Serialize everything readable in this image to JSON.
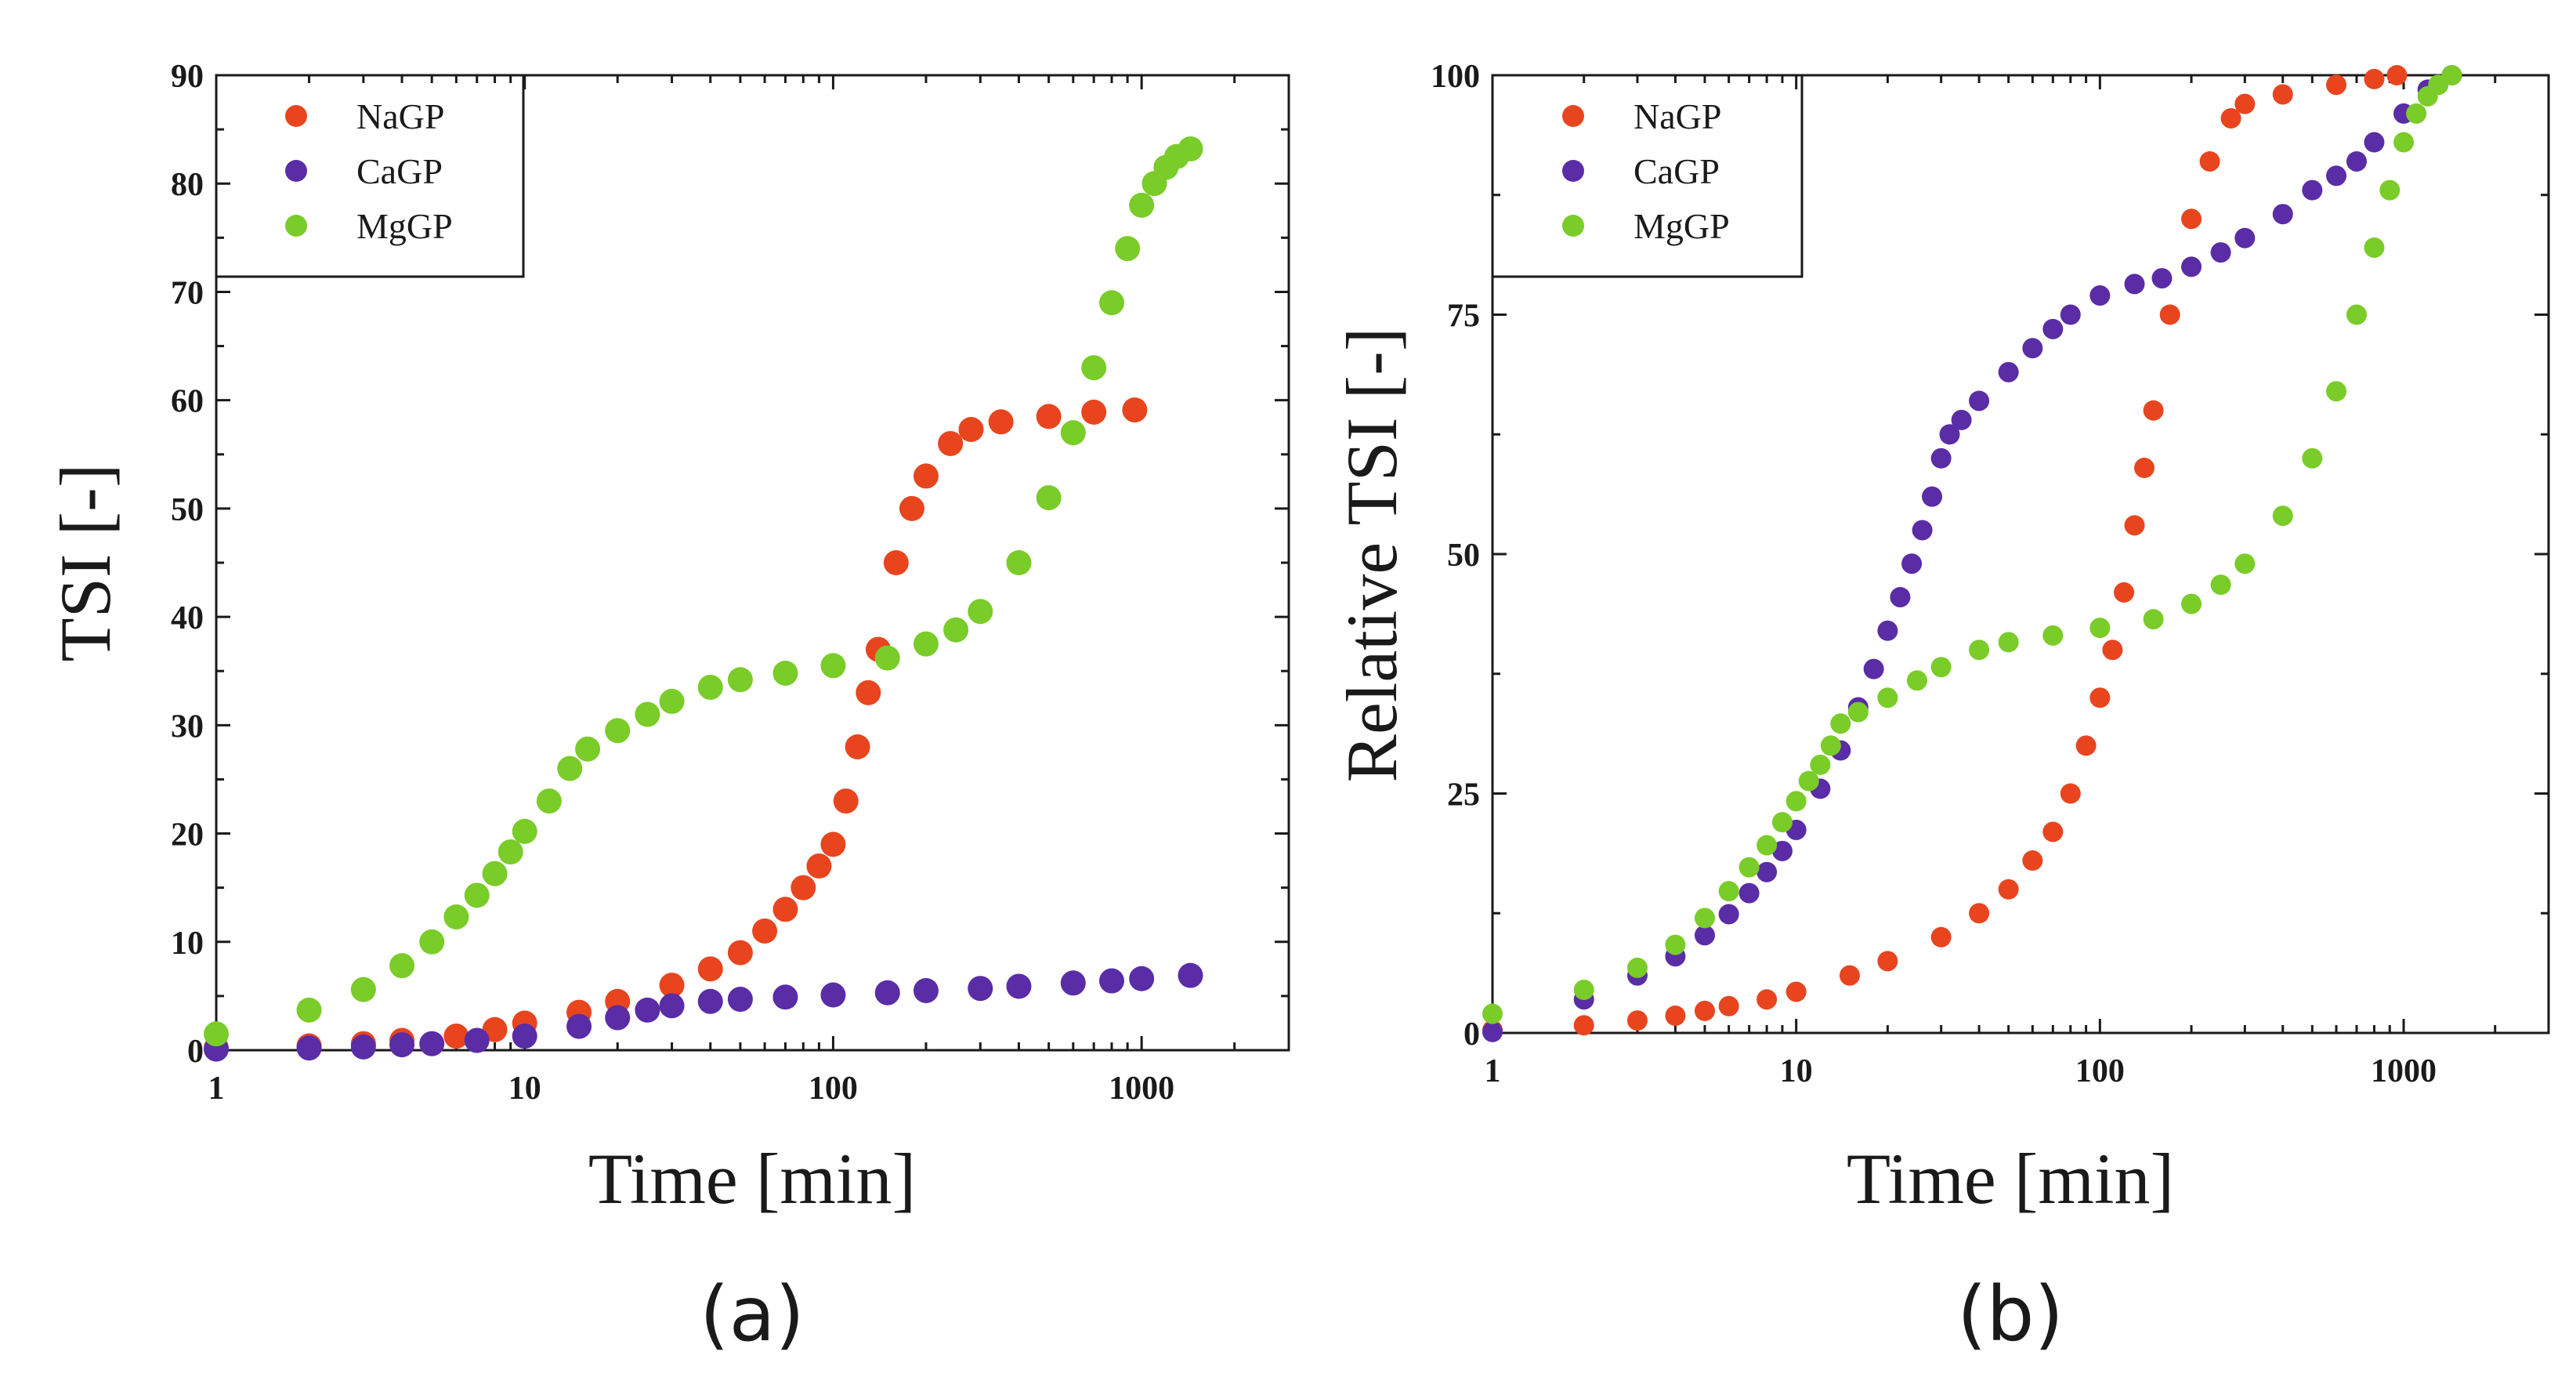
{
  "chart_data": [
    {
      "type": "scatter",
      "panel_label": "(a)",
      "xlabel": "Time [min]",
      "ylabel": "TSI [-]",
      "x_scale": "log",
      "xlim": [
        1,
        3000
      ],
      "ylim": [
        0,
        90
      ],
      "x_ticks": [
        1,
        10,
        100,
        1000
      ],
      "x_tick_labels": [
        "1",
        "10",
        "100",
        "1000"
      ],
      "y_ticks": [
        0,
        10,
        20,
        30,
        40,
        50,
        60,
        70,
        80,
        90
      ],
      "y_tick_labels": [
        "0",
        "10",
        "20",
        "30",
        "40",
        "50",
        "60",
        "70",
        "80",
        "90"
      ],
      "legend_position": "top-left",
      "series": [
        {
          "name": "NaGP",
          "color": "#e8451f",
          "points": [
            [
              1,
              0.2
            ],
            [
              2,
              0.4
            ],
            [
              3,
              0.6
            ],
            [
              4,
              0.9
            ],
            [
              6,
              1.3
            ],
            [
              8,
              1.9
            ],
            [
              10,
              2.5
            ],
            [
              15,
              3.5
            ],
            [
              20,
              4.5
            ],
            [
              30,
              6.0
            ],
            [
              40,
              7.5
            ],
            [
              50,
              9.0
            ],
            [
              60,
              11
            ],
            [
              70,
              13
            ],
            [
              80,
              15
            ],
            [
              90,
              17
            ],
            [
              100,
              19
            ],
            [
              110,
              23
            ],
            [
              120,
              28
            ],
            [
              130,
              33
            ],
            [
              140,
              37
            ],
            [
              160,
              45
            ],
            [
              180,
              50
            ],
            [
              200,
              53
            ],
            [
              240,
              56
            ],
            [
              280,
              57.3
            ],
            [
              350,
              58
            ],
            [
              500,
              58.5
            ],
            [
              700,
              58.9
            ],
            [
              950,
              59.1
            ]
          ]
        },
        {
          "name": "CaGP",
          "color": "#5a2ca6",
          "points": [
            [
              1,
              0.1
            ],
            [
              2,
              0.2
            ],
            [
              3,
              0.3
            ],
            [
              4,
              0.5
            ],
            [
              5,
              0.6
            ],
            [
              7,
              0.9
            ],
            [
              10,
              1.3
            ],
            [
              15,
              2.2
            ],
            [
              20,
              3.0
            ],
            [
              25,
              3.7
            ],
            [
              30,
              4.1
            ],
            [
              40,
              4.5
            ],
            [
              50,
              4.7
            ],
            [
              70,
              4.9
            ],
            [
              100,
              5.1
            ],
            [
              150,
              5.3
            ],
            [
              200,
              5.5
            ],
            [
              300,
              5.7
            ],
            [
              400,
              5.9
            ],
            [
              600,
              6.2
            ],
            [
              800,
              6.4
            ],
            [
              1000,
              6.6
            ],
            [
              1440,
              6.9
            ]
          ]
        },
        {
          "name": "MgGP",
          "color": "#7acc29",
          "points": [
            [
              1,
              1.5
            ],
            [
              2,
              3.7
            ],
            [
              3,
              5.6
            ],
            [
              4,
              7.8
            ],
            [
              5,
              10
            ],
            [
              6,
              12.3
            ],
            [
              7,
              14.3
            ],
            [
              8,
              16.3
            ],
            [
              9,
              18.3
            ],
            [
              10,
              20.2
            ],
            [
              12,
              23
            ],
            [
              14,
              26
            ],
            [
              16,
              27.8
            ],
            [
              20,
              29.5
            ],
            [
              25,
              31
            ],
            [
              30,
              32.2
            ],
            [
              40,
              33.5
            ],
            [
              50,
              34.2
            ],
            [
              70,
              34.8
            ],
            [
              100,
              35.5
            ],
            [
              150,
              36.2
            ],
            [
              200,
              37.5
            ],
            [
              250,
              38.8
            ],
            [
              300,
              40.5
            ],
            [
              400,
              45
            ],
            [
              500,
              51
            ],
            [
              600,
              57
            ],
            [
              700,
              63
            ],
            [
              800,
              69
            ],
            [
              900,
              74
            ],
            [
              1000,
              78
            ],
            [
              1100,
              80
            ],
            [
              1200,
              81.5
            ],
            [
              1300,
              82.5
            ],
            [
              1440,
              83.2
            ]
          ]
        }
      ]
    },
    {
      "type": "scatter",
      "panel_label": "(b)",
      "xlabel": "Time [min]",
      "ylabel": "Relative TSI [-]",
      "x_scale": "log",
      "xlim": [
        1,
        3000
      ],
      "ylim": [
        0,
        100
      ],
      "x_ticks": [
        1,
        10,
        100,
        1000
      ],
      "x_tick_labels": [
        "1",
        "10",
        "100",
        "1000"
      ],
      "y_ticks": [
        0,
        25,
        50,
        75,
        100
      ],
      "y_tick_labels": [
        "0",
        "25",
        "50",
        "75",
        "100"
      ],
      "legend_position": "top-left",
      "series": [
        {
          "name": "NaGP",
          "color": "#e8451f",
          "points": [
            [
              1,
              0.3
            ],
            [
              2,
              0.8
            ],
            [
              3,
              1.3
            ],
            [
              4,
              1.8
            ],
            [
              5,
              2.3
            ],
            [
              6,
              2.8
            ],
            [
              8,
              3.5
            ],
            [
              10,
              4.3
            ],
            [
              15,
              6.0
            ],
            [
              20,
              7.5
            ],
            [
              30,
              10
            ],
            [
              40,
              12.5
            ],
            [
              50,
              15
            ],
            [
              60,
              18
            ],
            [
              70,
              21
            ],
            [
              80,
              25
            ],
            [
              90,
              30
            ],
            [
              100,
              35
            ],
            [
              110,
              40
            ],
            [
              120,
              46
            ],
            [
              130,
              53
            ],
            [
              140,
              59
            ],
            [
              150,
              65
            ],
            [
              170,
              75
            ],
            [
              200,
              85
            ],
            [
              230,
              91
            ],
            [
              270,
              95.5
            ],
            [
              300,
              97
            ],
            [
              400,
              98
            ],
            [
              600,
              99
            ],
            [
              800,
              99.6
            ],
            [
              950,
              100
            ]
          ]
        },
        {
          "name": "CaGP",
          "color": "#5a2ca6",
          "points": [
            [
              1,
              0.1
            ],
            [
              2,
              3.5
            ],
            [
              3,
              6.0
            ],
            [
              4,
              8.0
            ],
            [
              5,
              10.2
            ],
            [
              6,
              12.4
            ],
            [
              7,
              14.6
            ],
            [
              8,
              16.8
            ],
            [
              9,
              19
            ],
            [
              10,
              21.2
            ],
            [
              12,
              25.5
            ],
            [
              14,
              29.5
            ],
            [
              16,
              34
            ],
            [
              18,
              38
            ],
            [
              20,
              42
            ],
            [
              22,
              45.5
            ],
            [
              24,
              49
            ],
            [
              26,
              52.5
            ],
            [
              28,
              56
            ],
            [
              30,
              60
            ],
            [
              32,
              62.5
            ],
            [
              35,
              64
            ],
            [
              40,
              66
            ],
            [
              50,
              69
            ],
            [
              60,
              71.5
            ],
            [
              70,
              73.5
            ],
            [
              80,
              75
            ],
            [
              100,
              77
            ],
            [
              130,
              78.2
            ],
            [
              160,
              78.8
            ],
            [
              200,
              80
            ],
            [
              250,
              81.5
            ],
            [
              300,
              83
            ],
            [
              400,
              85.5
            ],
            [
              500,
              88
            ],
            [
              600,
              89.5
            ],
            [
              700,
              91
            ],
            [
              800,
              93
            ],
            [
              1000,
              96
            ],
            [
              1200,
              98.5
            ],
            [
              1440,
              100
            ]
          ]
        },
        {
          "name": "MgGP",
          "color": "#7acc29",
          "points": [
            [
              1,
              2
            ],
            [
              2,
              4.5
            ],
            [
              3,
              6.8
            ],
            [
              4,
              9.2
            ],
            [
              5,
              12
            ],
            [
              6,
              14.8
            ],
            [
              7,
              17.3
            ],
            [
              8,
              19.6
            ],
            [
              9,
              22
            ],
            [
              10,
              24.2
            ],
            [
              11,
              26.3
            ],
            [
              12,
              28
            ],
            [
              13,
              30
            ],
            [
              14,
              32.3
            ],
            [
              16,
              33.5
            ],
            [
              20,
              35
            ],
            [
              25,
              36.8
            ],
            [
              30,
              38.2
            ],
            [
              40,
              40
            ],
            [
              50,
              40.8
            ],
            [
              70,
              41.5
            ],
            [
              100,
              42.3
            ],
            [
              150,
              43.2
            ],
            [
              200,
              44.8
            ],
            [
              250,
              46.8
            ],
            [
              300,
              49
            ],
            [
              400,
              54
            ],
            [
              500,
              60
            ],
            [
              600,
              67
            ],
            [
              700,
              75
            ],
            [
              800,
              82
            ],
            [
              900,
              88
            ],
            [
              1000,
              93
            ],
            [
              1100,
              96
            ],
            [
              1200,
              97.8
            ],
            [
              1300,
              99
            ],
            [
              1440,
              100
            ]
          ]
        }
      ]
    }
  ]
}
